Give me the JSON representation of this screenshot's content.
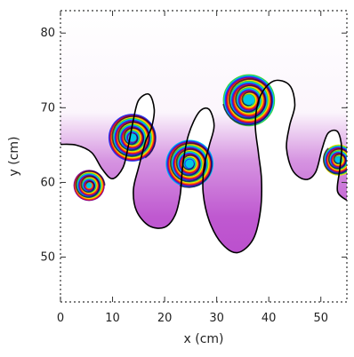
{
  "chart_data": {
    "type": "heatmap",
    "description_kind": "simulation-snapshot",
    "xlabel": "x (cm)",
    "ylabel": "y (cm)",
    "xlim": [
      0,
      55
    ],
    "ylim": [
      44,
      83
    ],
    "x_ticks": [
      "0",
      "10",
      "20",
      "30",
      "40",
      "50"
    ],
    "x_tick_values": [
      0,
      10,
      20,
      30,
      40,
      50
    ],
    "y_ticks": [
      "50",
      "60",
      "70",
      "80"
    ],
    "y_tick_values": [
      50,
      60,
      70,
      80
    ],
    "colormap": [
      "#7a0a96",
      "#1a3cff",
      "#00c8e6",
      "#39d23a",
      "#ffe000",
      "#ff7a00",
      "#e8141e"
    ],
    "background_color": "#ffffff",
    "haze_color": "#b43cc8",
    "interface_points": [
      [
        0,
        65.1
      ],
      [
        3,
        65.0
      ],
      [
        6,
        64.0
      ],
      [
        8,
        61.8
      ],
      [
        10,
        60.5
      ],
      [
        12,
        62.0
      ],
      [
        13,
        64.8
      ],
      [
        14,
        68.4
      ],
      [
        15,
        71.0
      ],
      [
        17,
        71.8
      ],
      [
        18,
        69.8
      ],
      [
        17.5,
        67.4
      ],
      [
        16.4,
        65.6
      ],
      [
        15,
        62.0
      ],
      [
        14,
        59.0
      ],
      [
        14.6,
        56.2
      ],
      [
        17,
        54.2
      ],
      [
        20,
        54.0
      ],
      [
        22,
        55.6
      ],
      [
        23,
        58.4
      ],
      [
        23.5,
        62.4
      ],
      [
        24.6,
        66.4
      ],
      [
        26.6,
        69.4
      ],
      [
        28.5,
        69.8
      ],
      [
        29.5,
        67.6
      ],
      [
        28.6,
        65.0
      ],
      [
        27.6,
        62.2
      ],
      [
        27.4,
        58.6
      ],
      [
        28.6,
        54.8
      ],
      [
        31,
        51.8
      ],
      [
        34,
        50.6
      ],
      [
        37,
        52.4
      ],
      [
        38.4,
        56.2
      ],
      [
        38.6,
        60.4
      ],
      [
        38,
        64.0
      ],
      [
        37.4,
        68.0
      ],
      [
        38.4,
        71.6
      ],
      [
        41,
        73.6
      ],
      [
        44,
        73.0
      ],
      [
        45,
        70.4
      ],
      [
        44,
        67.6
      ],
      [
        43.4,
        64.6
      ],
      [
        44.6,
        61.6
      ],
      [
        47,
        60.4
      ],
      [
        49,
        61.4
      ],
      [
        50.2,
        64.4
      ],
      [
        51.4,
        66.6
      ],
      [
        53.2,
        66.8
      ],
      [
        54,
        64.6
      ],
      [
        53.6,
        61.6
      ],
      [
        53.2,
        58.8
      ],
      [
        55,
        57.6
      ]
    ],
    "vortices": [
      {
        "x": 5.5,
        "y": 59.6,
        "r": 3.0,
        "turns": 3
      },
      {
        "x": 13.8,
        "y": 66.0,
        "r": 4.6,
        "turns": 4
      },
      {
        "x": 24.8,
        "y": 62.5,
        "r": 4.6,
        "turns": 4
      },
      {
        "x": 36.2,
        "y": 71.0,
        "r": 5.0,
        "turns": 4
      },
      {
        "x": 53.4,
        "y": 63.0,
        "r": 3.0,
        "turns": 3
      }
    ]
  }
}
